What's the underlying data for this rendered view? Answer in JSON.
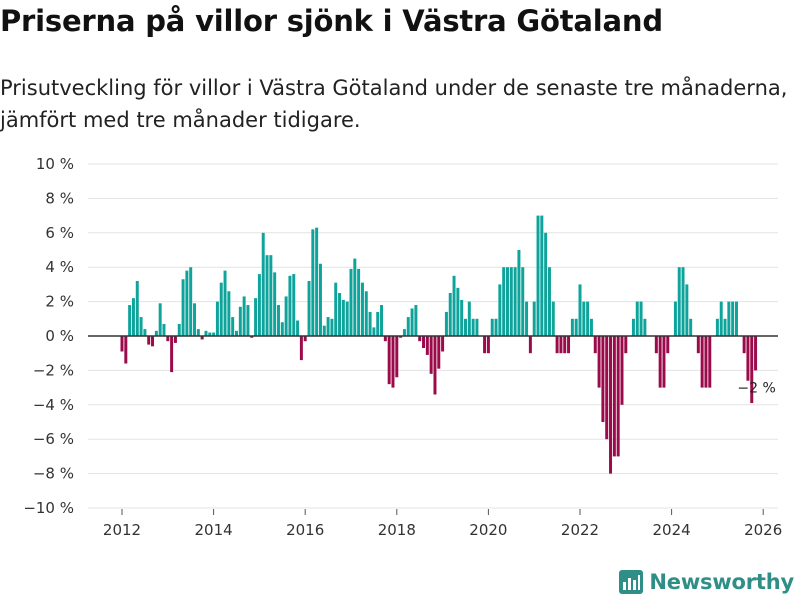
{
  "title": "Priserna på villor sjönk i Västra Götaland",
  "subtitle": "Prisutveckling för villor i Västra Götaland under de senaste tre månaderna, jämfört med tre månader tidigare.",
  "brand": "Newsworthy",
  "colors": {
    "positive": "#0fa49b",
    "negative": "#9b0a4a",
    "brand": "#2f8f86"
  },
  "chart_data": {
    "type": "bar",
    "unit": "%",
    "x_start": {
      "year": 2012,
      "month": 1
    },
    "ylim": [
      -10,
      10
    ],
    "y_ticks": [
      10,
      8,
      6,
      4,
      2,
      0,
      -2,
      -4,
      -6,
      -8,
      -10
    ],
    "y_tick_labels": [
      "10 %",
      "8 %",
      "6 %",
      "4 %",
      "2 %",
      "0 %",
      "−2 %",
      "−4 %",
      "−6 %",
      "−8 %",
      "−10 %"
    ],
    "x_ticks": [
      2012,
      2014,
      2016,
      2018,
      2020,
      2022,
      2024,
      2026
    ],
    "x_tick_labels": [
      "2012",
      "2014",
      "2016",
      "2018",
      "2020",
      "2022",
      "2024",
      "2026"
    ],
    "values": [
      -0.9,
      -1.6,
      1.8,
      2.2,
      3.2,
      1.1,
      0.4,
      -0.5,
      -0.6,
      0.3,
      1.9,
      0.7,
      -0.3,
      -2.1,
      -0.4,
      0.7,
      3.3,
      3.8,
      4.0,
      1.9,
      0.4,
      -0.2,
      0.3,
      0.2,
      0.2,
      2.0,
      3.1,
      3.8,
      2.6,
      1.1,
      0.3,
      1.7,
      2.3,
      1.8,
      -0.1,
      2.2,
      3.6,
      6.0,
      4.7,
      4.7,
      3.7,
      1.8,
      0.8,
      2.3,
      3.5,
      3.6,
      0.9,
      -1.4,
      -0.3,
      3.2,
      6.2,
      6.3,
      4.2,
      0.6,
      1.1,
      1.0,
      3.1,
      2.5,
      2.1,
      2.0,
      3.9,
      4.5,
      3.9,
      3.1,
      2.6,
      1.4,
      0.5,
      1.4,
      1.8,
      -0.3,
      -2.8,
      -3.0,
      -2.4,
      -0.1,
      0.4,
      1.1,
      1.6,
      1.8,
      -0.3,
      -0.7,
      -1.1,
      -2.2,
      -3.4,
      -1.9,
      -0.9,
      1.4,
      2.5,
      3.5,
      2.8,
      2.1,
      1.0,
      2.0,
      1.0,
      1.0,
      0.0,
      -1.0,
      -1.0,
      1.0,
      1.0,
      3.0,
      4.0,
      4.0,
      4.0,
      4.0,
      5.0,
      4.0,
      2.0,
      -1.0,
      2.0,
      7.0,
      7.0,
      6.0,
      4.0,
      2.0,
      -1.0,
      -1.0,
      -1.0,
      -1.0,
      1.0,
      1.0,
      3.0,
      2.0,
      2.0,
      1.0,
      -1.0,
      -3.0,
      -5.0,
      -6.0,
      -8.0,
      -7.0,
      -7.0,
      -4.0,
      -1.0,
      0.0,
      1.0,
      2.0,
      2.0,
      1.0,
      0.0,
      0.0,
      -1.0,
      -3.0,
      -3.0,
      -1.0,
      0.0,
      2.0,
      4.0,
      4.0,
      3.0,
      1.0,
      0.0,
      -1.0,
      -3.0,
      -3.0,
      -3.0,
      0.0,
      1.0,
      2.0,
      1.0,
      2.0,
      2.0,
      2.0,
      0.0,
      -1.0,
      -2.6,
      -3.9,
      -2.0
    ],
    "annotation": {
      "label": "−2 %",
      "value": -2
    }
  }
}
